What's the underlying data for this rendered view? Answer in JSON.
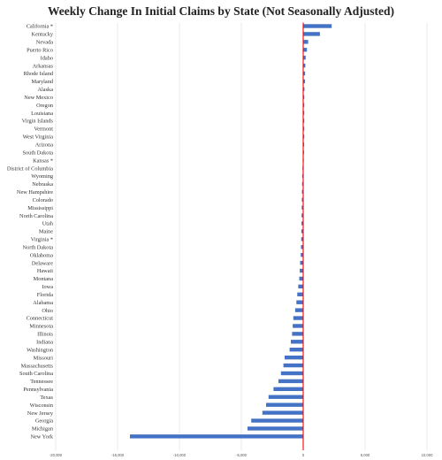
{
  "chart_data": {
    "type": "bar",
    "orientation": "horizontal",
    "title": "Weekly Change In Initial Claims by State (Not Seasonally Adjusted)",
    "xlabel": "",
    "ylabel": "",
    "xlim": [
      -20000,
      10000
    ],
    "x_ticks": [
      -20000,
      -15000,
      -10000,
      -5000,
      0,
      5000,
      10000
    ],
    "x_tick_labels": [
      "-20,000",
      "-15,000",
      "-10,000",
      "-5,000",
      "0",
      "5,000",
      "10,000"
    ],
    "grid": true,
    "legend": "none",
    "bar_color": "#4472c4",
    "zero_line_color": "#ff0000",
    "categories": [
      "California *",
      "Kentucky",
      "Nevada",
      "Puerto Rico",
      "Idaho",
      "Arkansas",
      "Rhode Island",
      "Maryland",
      "Alaska",
      "New Mexico",
      "Oregon",
      "Louisiana",
      "Virgin Islands",
      "Vermont",
      "West Virginia",
      "Arizona",
      "South Dakota",
      "Kansas *",
      "District of Columbia",
      "Wyoming",
      "Nebraska",
      "New Hampshire",
      "Colorado",
      "Mississippi",
      "North Carolina",
      "Utah",
      "Maine",
      "Virginia *",
      "North Dakota",
      "Oklahoma",
      "Delaware",
      "Hawaii",
      "Montana",
      "Iowa",
      "Florida",
      "Alabama",
      "Ohio",
      "Connecticut",
      "Minnesota",
      "Illinois",
      "Indiana",
      "Washington",
      "Missouri",
      "Massachusetts",
      "South Carolina",
      "Tennessee",
      "Pennsylvania",
      "Texas",
      "Wisconsin",
      "New Jersey",
      "Georgia",
      "Michigan",
      "New York"
    ],
    "values": [
      2300,
      1350,
      400,
      300,
      200,
      170,
      150,
      140,
      100,
      30,
      20,
      10,
      5,
      5,
      0,
      -10,
      -20,
      -40,
      -60,
      -80,
      -90,
      -100,
      -110,
      -120,
      -130,
      -140,
      -150,
      -160,
      -180,
      -200,
      -250,
      -280,
      -320,
      -400,
      -480,
      -550,
      -650,
      -800,
      -850,
      -900,
      -1000,
      -1100,
      -1500,
      -1600,
      -1800,
      -2000,
      -2400,
      -2800,
      -3000,
      -3300,
      -4200,
      -4500,
      -14000
    ]
  }
}
